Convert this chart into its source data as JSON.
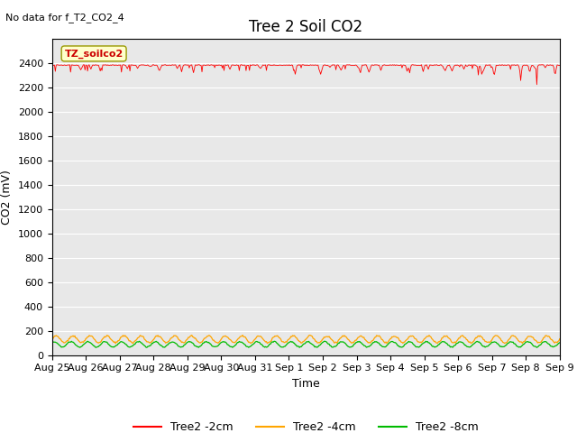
{
  "title": "Tree 2 Soil CO2",
  "no_data_text": "No data for f_T2_CO2_4",
  "ylabel": "CO2 (mV)",
  "xlabel": "Time",
  "ylim": [
    0,
    2600
  ],
  "yticks": [
    0,
    200,
    400,
    600,
    800,
    1000,
    1200,
    1400,
    1600,
    1800,
    2000,
    2200,
    2400
  ],
  "x_tick_labels": [
    "Aug 25",
    "Aug 26",
    "Aug 27",
    "Aug 28",
    "Aug 29",
    "Aug 30",
    "Aug 31",
    "Sep 1",
    "Sep 2",
    "Sep 3",
    "Sep 4",
    "Sep 5",
    "Sep 6",
    "Sep 7",
    "Sep 8",
    "Sep 9"
  ],
  "n_days": 15,
  "line_colors": {
    "2cm": "#ff0000",
    "4cm": "#ffa500",
    "8cm": "#00bb00"
  },
  "legend_labels": [
    "Tree2 -2cm",
    "Tree2 -4cm",
    "Tree2 -8cm"
  ],
  "annotation_label": "TZ_soilco2",
  "background_color": "#e8e8e8",
  "red_baseline": 2385,
  "orange_mean": 130,
  "orange_amp": 28,
  "green_mean": 88,
  "green_amp": 22,
  "n_points": 600,
  "title_fontsize": 12,
  "axis_label_fontsize": 9,
  "tick_fontsize": 8
}
